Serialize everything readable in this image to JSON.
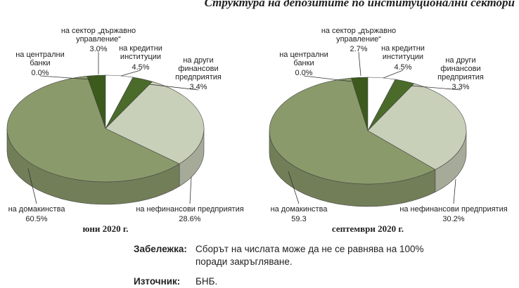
{
  "title": "Структура на депозитите по институционални сектори",
  "chart_data": [
    {
      "type": "pie",
      "caption": "юни 2020 г.",
      "categories": [
        "на централни банки",
        "на сектор „държавно управление“",
        "на кредитни институции",
        "на други финансови предприятия",
        "на нефинансови предприятия",
        "на домакинства"
      ],
      "values": [
        0.0,
        3.0,
        4.5,
        3.4,
        28.6,
        60.5
      ],
      "value_labels": [
        "0.0%",
        "3.0%",
        "4.5%",
        "3.4%",
        "28.6%",
        "60.5%"
      ],
      "colors": [
        "#2f4a14",
        "#3b5a1c",
        "#ffffff",
        "#4b6b2b",
        "#c9d0b9",
        "#8b9a6b"
      ]
    },
    {
      "type": "pie",
      "caption": "септември 2020 г.",
      "categories": [
        "на централни банки",
        "на сектор „държавно управление“",
        "на кредитни институции",
        "на други финансови предприятия",
        "на нефинансови предприятия",
        "на домакинства"
      ],
      "values": [
        0.0,
        2.7,
        4.5,
        3.3,
        30.2,
        59.3
      ],
      "value_labels": [
        "0.0%",
        "2.7%",
        "4.5%",
        "3.3%",
        "30.2%",
        "59.3"
      ],
      "colors": [
        "#2f4a14",
        "#3b5a1c",
        "#ffffff",
        "#4b6b2b",
        "#c9d0b9",
        "#8b9a6b"
      ]
    }
  ],
  "note": {
    "label": "Забележка:",
    "text": "Сборът на числата може да не се равнява на 100% поради закръгляване."
  },
  "source": {
    "label": "Източник:",
    "text": "БНБ."
  }
}
